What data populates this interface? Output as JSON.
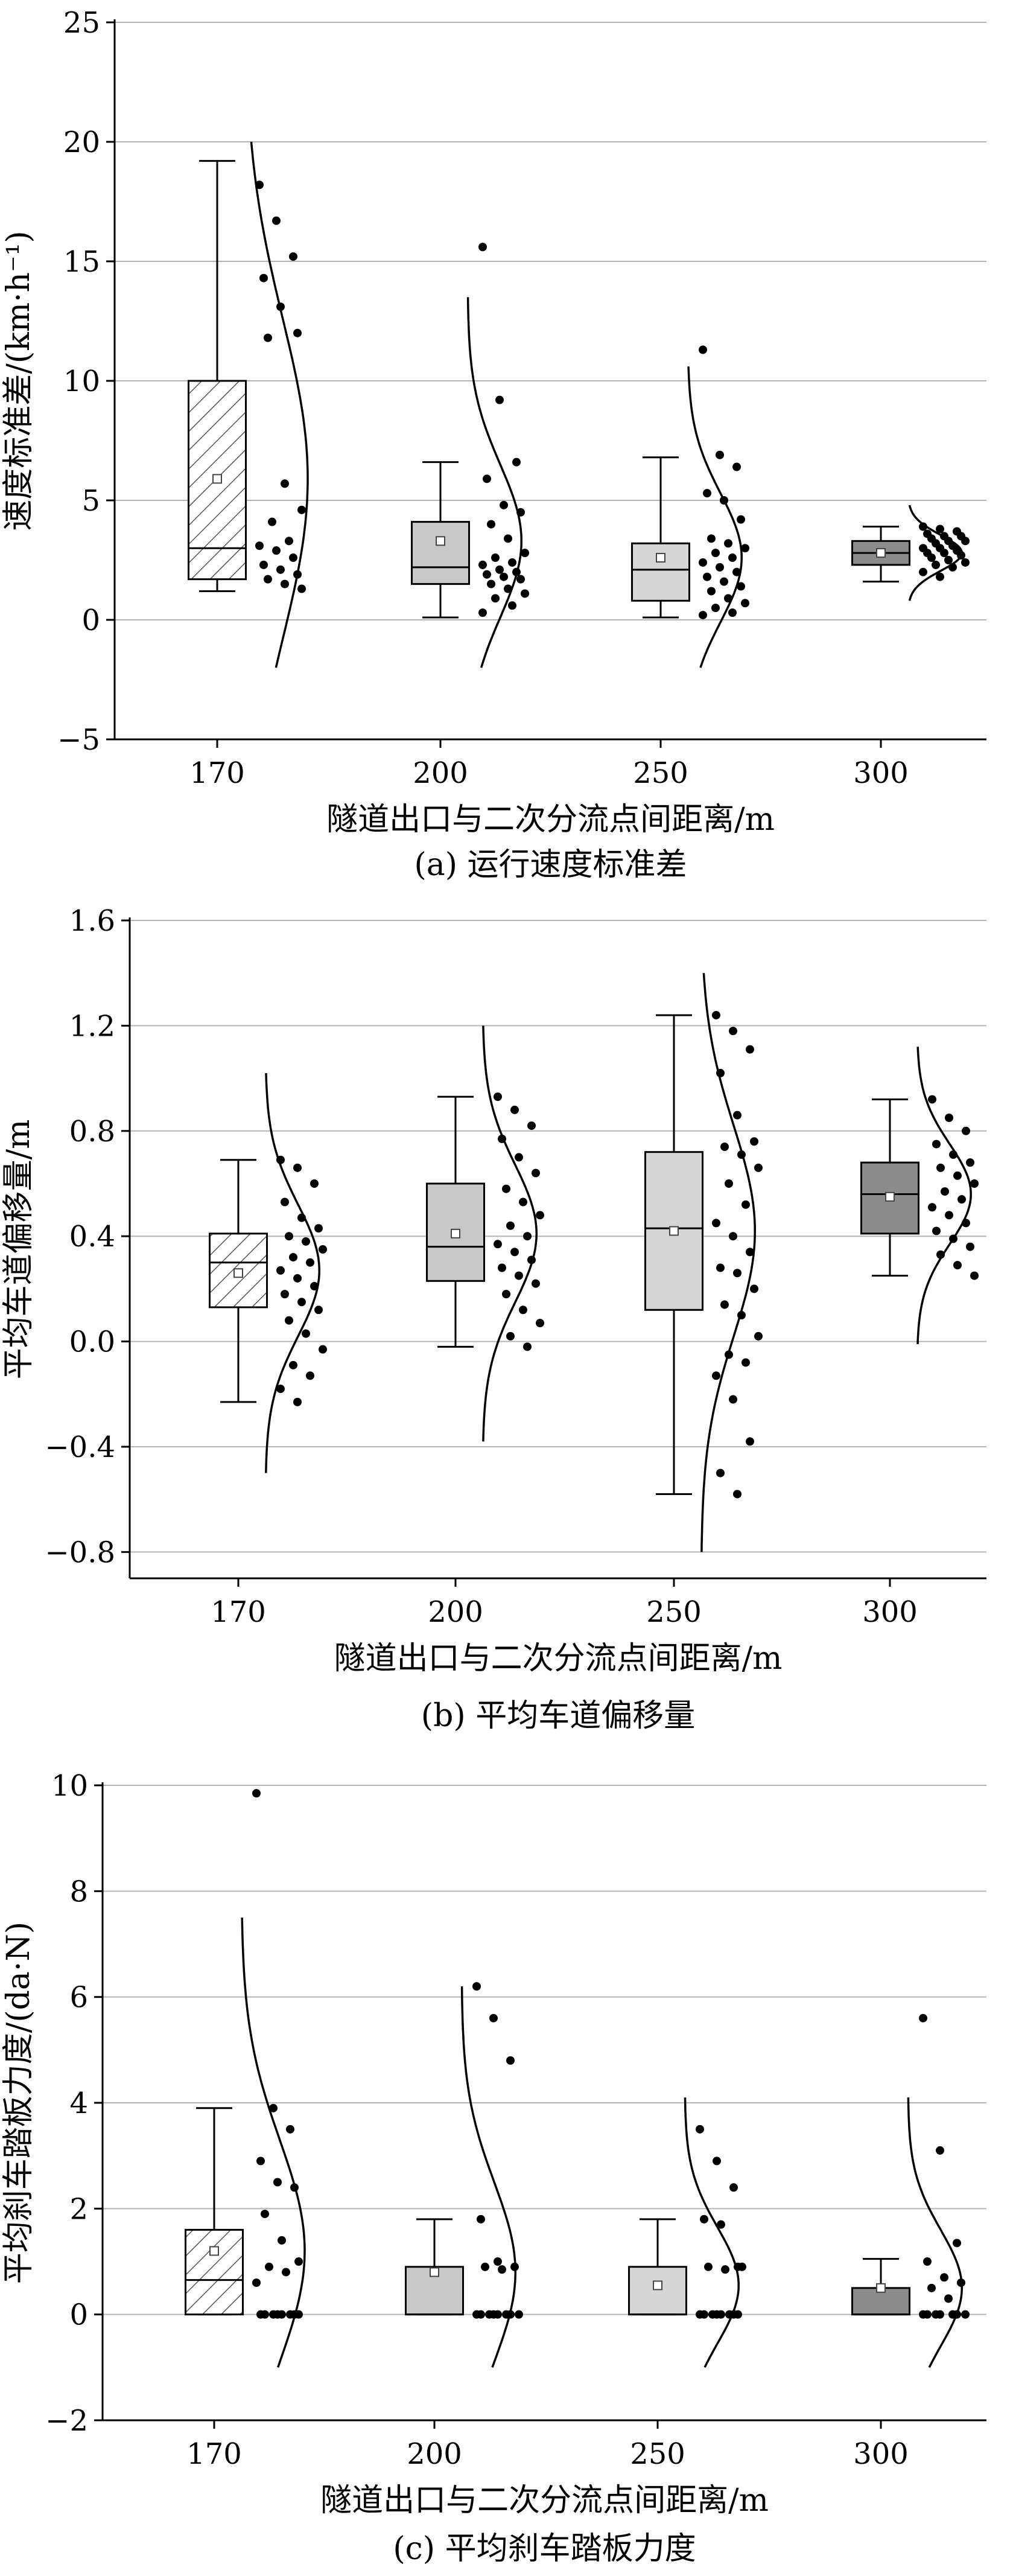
{
  "chart_data": [
    {
      "type": "box",
      "panel_caption": "(a) 运行速度标准差",
      "xlabel": "隧道出口与二次分流点间距离/m",
      "ylabel": "速度标准差/(km·h⁻¹)",
      "categories": [
        "170",
        "200",
        "250",
        "300"
      ],
      "ylim": [
        -5,
        25
      ],
      "yticks": [
        -5,
        0,
        5,
        10,
        15,
        20,
        25
      ],
      "ytick_labels": [
        "−5",
        "0",
        "5",
        "10",
        "15",
        "20",
        "25"
      ],
      "grid": "horizontal",
      "boxes": [
        {
          "category": "170",
          "whisker_low": 1.2,
          "q1": 1.7,
          "median": 3.0,
          "q3": 10.0,
          "whisker_high": 19.2,
          "mean": 5.9
        },
        {
          "category": "200",
          "whisker_low": 0.1,
          "q1": 1.5,
          "median": 2.2,
          "q3": 4.1,
          "whisker_high": 6.6,
          "mean": 3.3
        },
        {
          "category": "250",
          "whisker_low": 0.1,
          "q1": 0.8,
          "median": 2.1,
          "q3": 3.2,
          "whisker_high": 6.8,
          "mean": 2.6
        },
        {
          "category": "300",
          "whisker_low": 1.6,
          "q1": 2.3,
          "median": 2.8,
          "q3": 3.3,
          "whisker_high": 3.9,
          "mean": 2.8
        }
      ],
      "points": [
        [
          18.2,
          16.7,
          15.2,
          14.3,
          13.1,
          12.0,
          11.8,
          5.7,
          4.6,
          4.1,
          3.3,
          3.1,
          2.9,
          2.6,
          2.3,
          2.1,
          1.9,
          1.7,
          1.5,
          1.3
        ],
        [
          15.6,
          9.2,
          6.6,
          5.9,
          4.8,
          4.5,
          4.0,
          3.4,
          2.8,
          2.6,
          2.4,
          2.3,
          2.1,
          2.0,
          1.9,
          1.8,
          1.7,
          1.5,
          1.3,
          1.1,
          0.9,
          0.6,
          0.3
        ],
        [
          11.3,
          6.9,
          6.4,
          5.3,
          5.0,
          4.2,
          3.4,
          3.2,
          3.0,
          2.8,
          2.6,
          2.4,
          2.2,
          2.0,
          1.8,
          1.6,
          1.4,
          1.2,
          0.9,
          0.7,
          0.5,
          0.3,
          0.2
        ],
        [
          3.9,
          3.8,
          3.7,
          3.6,
          3.5,
          3.5,
          3.4,
          3.3,
          3.3,
          3.2,
          3.1,
          3.0,
          3.0,
          2.9,
          2.8,
          2.8,
          2.7,
          2.6,
          2.5,
          2.4,
          2.3,
          2.2,
          2.0,
          1.8
        ]
      ],
      "curves": [
        {
          "mean": 5.9,
          "sd": 6.7,
          "range": [
            -2,
            20
          ],
          "amplitude": 1.0
        },
        {
          "mean": 3.3,
          "sd": 3.2,
          "range": [
            -2,
            13.5
          ],
          "amplitude": 0.85
        },
        {
          "mean": 2.6,
          "sd": 2.7,
          "range": [
            -2,
            10.6
          ],
          "amplitude": 0.85
        },
        {
          "mean": 2.8,
          "sd": 0.75,
          "range": [
            0.8,
            4.8
          ],
          "amplitude": 0.85
        }
      ]
    },
    {
      "type": "box",
      "panel_caption": "(b) 平均车道偏移量",
      "xlabel": "隧道出口与二次分流点间距离/m",
      "ylabel": "平均车道偏移量/m",
      "categories": [
        "170",
        "200",
        "250",
        "300"
      ],
      "ylim": [
        -0.9,
        1.6
      ],
      "yticks": [
        -0.8,
        -0.4,
        0.0,
        0.4,
        0.8,
        1.2,
        1.6
      ],
      "ytick_labels": [
        "−0.8",
        "−0.4",
        "0.0",
        "0.4",
        "0.8",
        "1.2",
        "1.6"
      ],
      "grid": "horizontal",
      "boxes": [
        {
          "category": "170",
          "whisker_low": -0.23,
          "q1": 0.13,
          "median": 0.3,
          "q3": 0.41,
          "whisker_high": 0.69,
          "mean": 0.26
        },
        {
          "category": "200",
          "whisker_low": -0.02,
          "q1": 0.23,
          "median": 0.36,
          "q3": 0.6,
          "whisker_high": 0.93,
          "mean": 0.41
        },
        {
          "category": "250",
          "whisker_low": -0.58,
          "q1": 0.12,
          "median": 0.43,
          "q3": 0.72,
          "whisker_high": 1.24,
          "mean": 0.42
        },
        {
          "category": "300",
          "whisker_low": 0.25,
          "q1": 0.41,
          "median": 0.56,
          "q3": 0.68,
          "whisker_high": 0.92,
          "mean": 0.55
        }
      ],
      "points": [
        [
          0.69,
          0.66,
          0.6,
          0.53,
          0.47,
          0.43,
          0.4,
          0.38,
          0.35,
          0.32,
          0.3,
          0.27,
          0.24,
          0.21,
          0.18,
          0.15,
          0.12,
          0.08,
          0.03,
          -0.03,
          -0.09,
          -0.13,
          -0.18,
          -0.23
        ],
        [
          0.93,
          0.88,
          0.82,
          0.77,
          0.7,
          0.64,
          0.58,
          0.53,
          0.48,
          0.44,
          0.4,
          0.37,
          0.34,
          0.31,
          0.28,
          0.25,
          0.22,
          0.18,
          0.12,
          0.07,
          0.02,
          -0.02
        ],
        [
          1.24,
          1.18,
          1.11,
          1.02,
          0.86,
          0.76,
          0.74,
          0.71,
          0.66,
          0.6,
          0.52,
          0.45,
          0.4,
          0.34,
          0.28,
          0.26,
          0.2,
          0.14,
          0.1,
          0.02,
          -0.05,
          -0.08,
          -0.13,
          -0.22,
          -0.38,
          -0.5,
          -0.58
        ],
        [
          0.92,
          0.85,
          0.8,
          0.75,
          0.71,
          0.68,
          0.66,
          0.63,
          0.6,
          0.57,
          0.54,
          0.51,
          0.48,
          0.45,
          0.42,
          0.39,
          0.36,
          0.33,
          0.29,
          0.25
        ]
      ],
      "curves": [
        {
          "mean": 0.27,
          "sd": 0.25,
          "range": [
            -0.5,
            1.02
          ],
          "amplitude": 0.85
        },
        {
          "mean": 0.41,
          "sd": 0.26,
          "range": [
            -0.38,
            1.2
          ],
          "amplitude": 0.85
        },
        {
          "mean": 0.42,
          "sd": 0.4,
          "range": [
            -0.8,
            1.4
          ],
          "amplitude": 0.85
        },
        {
          "mean": 0.56,
          "sd": 0.19,
          "range": [
            -0.01,
            1.12
          ],
          "amplitude": 0.85
        }
      ]
    },
    {
      "type": "box",
      "panel_caption": "(c) 平均刹车踏板力度",
      "xlabel": "隧道出口与二次分流点间距离/m",
      "ylabel": "平均刹车踏板力度/(da·N)",
      "categories": [
        "170",
        "200",
        "250",
        "300"
      ],
      "ylim": [
        -2,
        10
      ],
      "yticks": [
        -2,
        0,
        2,
        4,
        6,
        8,
        10
      ],
      "ytick_labels": [
        "−2",
        "0",
        "2",
        "4",
        "6",
        "8",
        "10"
      ],
      "grid": "horizontal",
      "boxes": [
        {
          "category": "170",
          "whisker_low": 0.0,
          "q1": 0.0,
          "median": 0.65,
          "q3": 1.6,
          "whisker_high": 3.9,
          "mean": 1.2
        },
        {
          "category": "200",
          "whisker_low": 0.0,
          "q1": 0.0,
          "median": 0.0,
          "q3": 0.9,
          "whisker_high": 1.8,
          "mean": 0.8
        },
        {
          "category": "250",
          "whisker_low": 0.0,
          "q1": 0.0,
          "median": 0.0,
          "q3": 0.9,
          "whisker_high": 1.8,
          "mean": 0.55
        },
        {
          "category": "300",
          "whisker_low": 0.0,
          "q1": 0.0,
          "median": 0.0,
          "q3": 0.5,
          "whisker_high": 1.05,
          "mean": 0.5
        }
      ],
      "points": [
        [
          9.85,
          3.9,
          3.5,
          2.9,
          2.5,
          2.4,
          1.9,
          1.4,
          1.0,
          0.9,
          0.8,
          0.6,
          0.0,
          0.0,
          0.0,
          0.0,
          0.0,
          0.0,
          0.0,
          0.0
        ],
        [
          6.2,
          5.6,
          4.8,
          1.8,
          1.0,
          0.9,
          0.9,
          0.85,
          0.0,
          0.0,
          0.0,
          0.0,
          0.0,
          0.0,
          0.0,
          0.0
        ],
        [
          3.5,
          2.9,
          2.4,
          1.8,
          1.7,
          0.9,
          0.9,
          0.85,
          0.9,
          0.0,
          0.0,
          0.0,
          0.0,
          0.0,
          0.0,
          0.0,
          0.0
        ],
        [
          5.6,
          3.1,
          1.35,
          1.0,
          0.7,
          0.6,
          0.5,
          0.3,
          0.0,
          0.0,
          0.0,
          0.0,
          0.0,
          0.0,
          0.0
        ]
      ],
      "curves": [
        {
          "mean": 1.2,
          "sd": 2.1,
          "range": [
            -1,
            7.5
          ],
          "amplitude": 1.0
        },
        {
          "mean": 0.8,
          "sd": 1.7,
          "range": [
            -1,
            6.2
          ],
          "amplitude": 0.85
        },
        {
          "mean": 0.55,
          "sd": 1.1,
          "range": [
            -1,
            4.1
          ],
          "amplitude": 0.85
        },
        {
          "mean": 0.5,
          "sd": 1.1,
          "range": [
            -1,
            4.1
          ],
          "amplitude": 0.85
        }
      ]
    }
  ],
  "styles": {
    "box_fills": [
      "hatch",
      "#c8c8c8",
      "#d6d6d6",
      "#8c8c8c"
    ],
    "grid_color": "#b4b4b4",
    "axis_color": "#000000",
    "point_color": "#000000"
  }
}
